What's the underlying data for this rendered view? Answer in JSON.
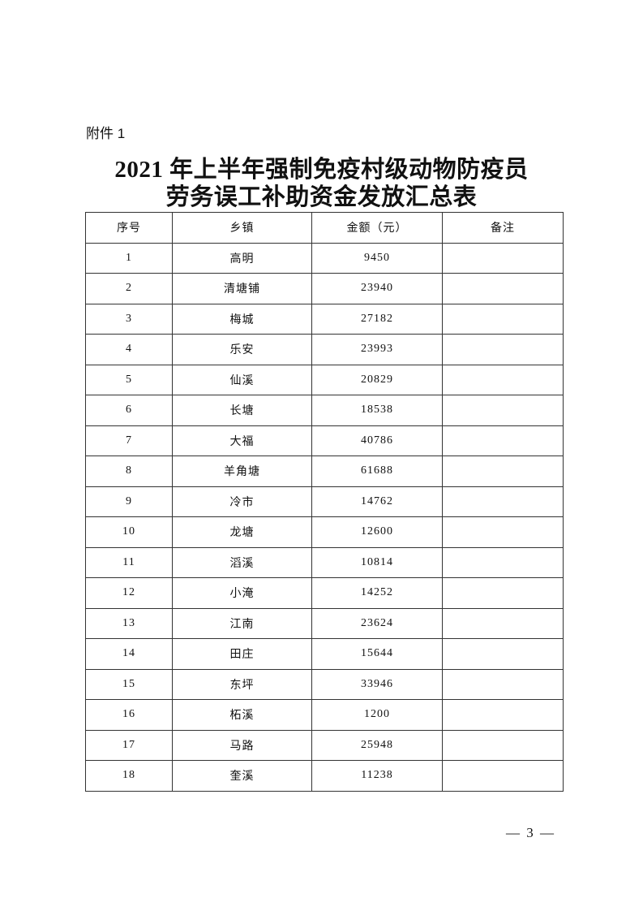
{
  "attachment_label": "附件 1",
  "title_line1": "2021 年上半年强制免疫村级动物防疫员",
  "title_line2": "劳务误工补助资金发放汇总表",
  "table": {
    "headers": [
      "序号",
      "乡镇",
      "金额（元）",
      "备注"
    ],
    "rows": [
      [
        "1",
        "高明",
        "9450",
        ""
      ],
      [
        "2",
        "清塘铺",
        "23940",
        ""
      ],
      [
        "3",
        "梅城",
        "27182",
        ""
      ],
      [
        "4",
        "乐安",
        "23993",
        ""
      ],
      [
        "5",
        "仙溪",
        "20829",
        ""
      ],
      [
        "6",
        "长塘",
        "18538",
        ""
      ],
      [
        "7",
        "大福",
        "40786",
        ""
      ],
      [
        "8",
        "羊角塘",
        "61688",
        ""
      ],
      [
        "9",
        "冷市",
        "14762",
        ""
      ],
      [
        "10",
        "龙塘",
        "12600",
        ""
      ],
      [
        "11",
        "滔溪",
        "10814",
        ""
      ],
      [
        "12",
        "小淹",
        "14252",
        ""
      ],
      [
        "13",
        "江南",
        "23624",
        ""
      ],
      [
        "14",
        "田庄",
        "15644",
        ""
      ],
      [
        "15",
        "东坪",
        "33946",
        ""
      ],
      [
        "16",
        "柘溪",
        "1200",
        ""
      ],
      [
        "17",
        "马路",
        "25948",
        ""
      ],
      [
        "18",
        "奎溪",
        "11238",
        ""
      ]
    ]
  },
  "page_number": "— 3 —"
}
